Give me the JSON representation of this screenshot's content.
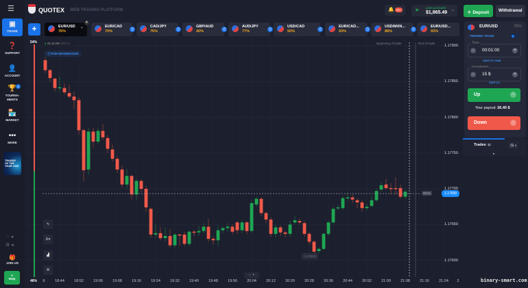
{
  "header": {
    "brand": "QUOTEX",
    "subtitle": "WEB TRADING PLATFORM",
    "notifications": "99+",
    "account_type": "LIVE ACCOUNT",
    "balance": "$1,865.49",
    "deposit": "Deposit",
    "withdrawal": "Withdrawal"
  },
  "sidebar": {
    "items": [
      {
        "label": "TRADE",
        "icon": "chart-icon"
      },
      {
        "label": "SUPPORT",
        "icon": "question-icon"
      },
      {
        "label": "ACCOUNT",
        "icon": "user-icon"
      },
      {
        "label": "TOURNA-MENTS",
        "icon": "trophy-icon",
        "badge": "5"
      },
      {
        "label": "MARKET",
        "icon": "store-icon"
      },
      {
        "label": "MORE",
        "icon": "dots-icon"
      }
    ],
    "promo": "TRADER OF THE YEAR 2025",
    "join": "JOIN US",
    "help": "Help"
  },
  "tabs": [
    {
      "pair": "EUR/USD",
      "pct": "76%",
      "active": true
    },
    {
      "pair": "EUR/CAD",
      "pct": "70%"
    },
    {
      "pair": "CAD/JPY",
      "pct": "76%"
    },
    {
      "pair": "GBP/AUD",
      "pct": "40%"
    },
    {
      "pair": "AUD/JPY",
      "pct": "77%"
    },
    {
      "pair": "USD/CAD",
      "pct": "50%"
    },
    {
      "pair": "EUR/CAD...",
      "pct": "93%"
    },
    {
      "pair": "USD/MXN...",
      "pct": "88%"
    },
    {
      "pair": "EUR/USD...",
      "pct": "93%"
    }
  ],
  "chart": {
    "clock": "21:11:09",
    "tz": "UTC+3",
    "pair_info": "PAIR INFORMATION",
    "sentiment_up": "54%",
    "sentiment_down": "46%",
    "beginning": "Beginning of trade",
    "end": "End of trade",
    "timer": "00:51",
    "current_price": "1.17699",
    "low_label": "1.17616",
    "timeframe": "2m",
    "colors": {
      "up": "#1fa653",
      "down": "#f0594a"
    }
  },
  "chart_data": {
    "type": "candlestick",
    "ylim": [
      1.1757,
      1.1792
    ],
    "yticks": [
      "1.17900",
      "1.17850",
      "1.17800",
      "1.17750",
      "1.17700",
      "1.17650",
      "1.17600"
    ],
    "xticks": [
      "6",
      "18:44",
      "18:52",
      "19:00",
      "19:08",
      "19:16",
      "19:24",
      "19:32",
      "19:40",
      "19:48",
      "19:56",
      "20:04",
      "20:12",
      "20:20",
      "20:28",
      "20:36",
      "20:44",
      "20:52",
      "21:00",
      "21:08",
      "21:16",
      "21:24",
      "2"
    ],
    "candles": [
      [
        "18:38",
        1.1788,
        1.17884,
        1.17862,
        1.17866
      ],
      [
        "18:40",
        1.17866,
        1.17868,
        1.1785,
        1.17855
      ],
      [
        "18:42",
        1.17854,
        1.17856,
        1.17836,
        1.17841
      ],
      [
        "18:44",
        1.17841,
        1.17857,
        1.17836,
        1.17842
      ],
      [
        "18:46",
        1.17841,
        1.17848,
        1.17832,
        1.17835
      ],
      [
        "18:48",
        1.17834,
        1.17846,
        1.17827,
        1.17829
      ],
      [
        "18:50",
        1.17829,
        1.17836,
        1.17812,
        1.17824
      ],
      [
        "18:52",
        1.17824,
        1.17828,
        1.17776,
        1.17782
      ],
      [
        "18:54",
        1.17782,
        1.17784,
        1.1771,
        1.17726
      ],
      [
        "18:56",
        1.17727,
        1.17785,
        1.1772,
        1.1778
      ],
      [
        "18:58",
        1.1778,
        1.17785,
        1.17758,
        1.17766
      ],
      [
        "19:00",
        1.17766,
        1.17785,
        1.17763,
        1.17781
      ],
      [
        "19:02",
        1.17781,
        1.17791,
        1.17768,
        1.17772
      ],
      [
        "19:04",
        1.17771,
        1.17775,
        1.1775,
        1.17756
      ],
      [
        "19:06",
        1.17755,
        1.17762,
        1.17738,
        1.17742
      ],
      [
        "19:08",
        1.17742,
        1.17746,
        1.17722,
        1.17727
      ],
      [
        "19:10",
        1.17727,
        1.17733,
        1.17702,
        1.17706
      ],
      [
        "19:12",
        1.17706,
        1.17728,
        1.177,
        1.17718
      ],
      [
        "19:14",
        1.17718,
        1.1772,
        1.17685,
        1.17692
      ],
      [
        "19:16",
        1.17692,
        1.17714,
        1.17684,
        1.17711
      ],
      [
        "19:18",
        1.17711,
        1.17713,
        1.17695,
        1.177
      ],
      [
        "19:20",
        1.177,
        1.17704,
        1.17668,
        1.17674
      ],
      [
        "19:22",
        1.17672,
        1.17674,
        1.17632,
        1.17636
      ],
      [
        "19:24",
        1.17636,
        1.1765,
        1.17632,
        1.17638
      ],
      [
        "19:26",
        1.17638,
        1.17646,
        1.17628,
        1.17631
      ],
      [
        "19:28",
        1.17631,
        1.17646,
        1.17626,
        1.17634
      ],
      [
        "19:30",
        1.17634,
        1.17644,
        1.17618,
        1.17621
      ],
      [
        "19:32",
        1.17621,
        1.17638,
        1.17618,
        1.17636
      ],
      [
        "19:34",
        1.17636,
        1.17637,
        1.1762,
        1.17635
      ],
      [
        "19:36",
        1.17636,
        1.1764,
        1.1762,
        1.17623
      ],
      [
        "19:38",
        1.17623,
        1.17642,
        1.1762,
        1.1764
      ],
      [
        "19:40",
        1.1764,
        1.17642,
        1.17634,
        1.17639
      ],
      [
        "19:42",
        1.17639,
        1.17648,
        1.17634,
        1.17641
      ],
      [
        "19:44",
        1.17641,
        1.17652,
        1.17638,
        1.17647
      ],
      [
        "19:46",
        1.17647,
        1.17658,
        1.17626,
        1.1763
      ],
      [
        "19:48",
        1.1763,
        1.17633,
        1.17622,
        1.17628
      ],
      [
        "19:50",
        1.17628,
        1.17648,
        1.1762,
        1.17642
      ],
      [
        "19:52",
        1.17642,
        1.17647,
        1.17638,
        1.17645
      ],
      [
        "19:54",
        1.17645,
        1.17652,
        1.1764,
        1.17647
      ],
      [
        "19:56",
        1.17647,
        1.1765,
        1.17636,
        1.1764
      ],
      [
        "19:58",
        1.17653,
        1.17655,
        1.17637,
        1.17642
      ],
      [
        "20:00",
        1.17642,
        1.17656,
        1.17638,
        1.17653
      ],
      [
        "20:02",
        1.17653,
        1.17655,
        1.17636,
        1.17641
      ],
      [
        "20:04",
        1.17641,
        1.17684,
        1.17638,
        1.1768
      ],
      [
        "20:06",
        1.17678,
        1.17689,
        1.17675,
        1.17686
      ],
      [
        "20:08",
        1.17686,
        1.17688,
        1.17662,
        1.17666
      ],
      [
        "20:10",
        1.17666,
        1.17668,
        1.17652,
        1.17657
      ],
      [
        "20:12",
        1.17657,
        1.1766,
        1.17633,
        1.17637
      ],
      [
        "20:14",
        1.17637,
        1.1765,
        1.17632,
        1.17646
      ],
      [
        "20:16",
        1.17646,
        1.17649,
        1.17634,
        1.17639
      ],
      [
        "20:18",
        1.17639,
        1.17641,
        1.17632,
        1.17637
      ],
      [
        "20:20",
        1.17637,
        1.17655,
        1.17633,
        1.1765
      ],
      [
        "20:22",
        1.17653,
        1.17662,
        1.1765,
        1.17656
      ],
      [
        "20:24",
        1.17655,
        1.17658,
        1.1765,
        1.17653
      ],
      [
        "20:26",
        1.17652,
        1.17655,
        1.17633,
        1.17637
      ],
      [
        "20:28",
        1.17637,
        1.1764,
        1.17622,
        1.17626
      ],
      [
        "20:30",
        1.17626,
        1.17628,
        1.1761,
        1.17612
      ],
      [
        "20:32",
        1.17613,
        1.17618,
        1.1761,
        1.17616
      ],
      [
        "20:34",
        1.17616,
        1.17639,
        1.17614,
        1.17637
      ],
      [
        "20:36",
        1.17637,
        1.17655,
        1.17634,
        1.17653
      ],
      [
        "20:38",
        1.17653,
        1.17675,
        1.1765,
        1.17672
      ],
      [
        "20:40",
        1.17673,
        1.17678,
        1.1767,
        1.17674
      ],
      [
        "20:42",
        1.17673,
        1.1769,
        1.1767,
        1.17687
      ],
      [
        "20:44",
        1.17687,
        1.17695,
        1.17683,
        1.17688
      ],
      [
        "20:46",
        1.17688,
        1.17692,
        1.1768,
        1.17685
      ],
      [
        "20:48",
        1.17684,
        1.17687,
        1.17673,
        1.17681
      ],
      [
        "20:50",
        1.17681,
        1.17684,
        1.17668,
        1.17673
      ],
      [
        "20:52",
        1.17673,
        1.17679,
        1.1767,
        1.17675
      ],
      [
        "20:54",
        1.17676,
        1.1769,
        1.17674,
        1.17684
      ],
      [
        "20:56",
        1.17684,
        1.177,
        1.17681,
        1.17697
      ],
      [
        "20:58",
        1.17699,
        1.1771,
        1.17696,
        1.17705
      ],
      [
        "21:00",
        1.17706,
        1.17714,
        1.17699,
        1.17701
      ],
      [
        "21:02",
        1.17701,
        1.17708,
        1.17692,
        1.177
      ],
      [
        "21:04",
        1.17701,
        1.17716,
        1.17692,
        1.177
      ],
      [
        "21:06",
        1.17701,
        1.17706,
        1.17686,
        1.17689
      ],
      [
        "21:08",
        1.17689,
        1.17699,
        1.17686,
        1.17696
      ]
    ]
  },
  "panel": {
    "pair": "EUR/USD",
    "pct": "76%",
    "pending": "PENDING TRADE",
    "time_label": "Time",
    "time": "00:01:00",
    "switch_time": "SWITCH TIME",
    "inv_label": "Investment",
    "investment": "15 $",
    "switch": "SWITCH",
    "up": "Up",
    "payout_label": "Your payout:",
    "payout": "26.40 $",
    "down": "Down",
    "trades": "Trades",
    "trades_count": "0",
    "history_count": "0"
  },
  "watermark": "binary-smart.com"
}
